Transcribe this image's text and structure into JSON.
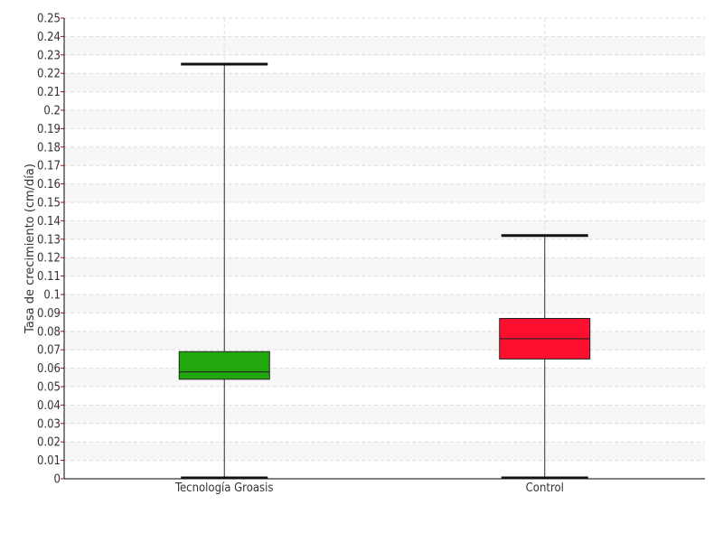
{
  "chart_data": {
    "type": "box",
    "title": "",
    "xlabel": "",
    "ylabel": "Tasa de crecimiento (cm/día)",
    "ylim": [
      0,
      0.25
    ],
    "ytick_step": 0.01,
    "yticks": [
      "0",
      "0.01",
      "0.02",
      "0.03",
      "0.04",
      "0.05",
      "0.06",
      "0.07",
      "0.08",
      "0.09",
      "0.1",
      "0.11",
      "0.12",
      "0.13",
      "0.14",
      "0.15",
      "0.16",
      "0.17",
      "0.18",
      "0.19",
      "0.2",
      "0.21",
      "0.22",
      "0.23",
      "0.24",
      "0.25"
    ],
    "grid": true,
    "categories": [
      "Tecnología Groasis",
      "Control"
    ],
    "boxes": [
      {
        "category": "Tecnología Groasis",
        "min": 0.0,
        "q1": 0.054,
        "median": 0.058,
        "q3": 0.069,
        "max": 0.225,
        "color": "#22a80e"
      },
      {
        "category": "Control",
        "min": 0.0,
        "q1": 0.065,
        "median": 0.076,
        "q3": 0.087,
        "max": 0.132,
        "color": "#ff0f2f"
      }
    ]
  },
  "colors": {
    "axis": "#000000",
    "grid": "#dddddd",
    "band": "#f7f7f7",
    "whisker": "#333333"
  }
}
